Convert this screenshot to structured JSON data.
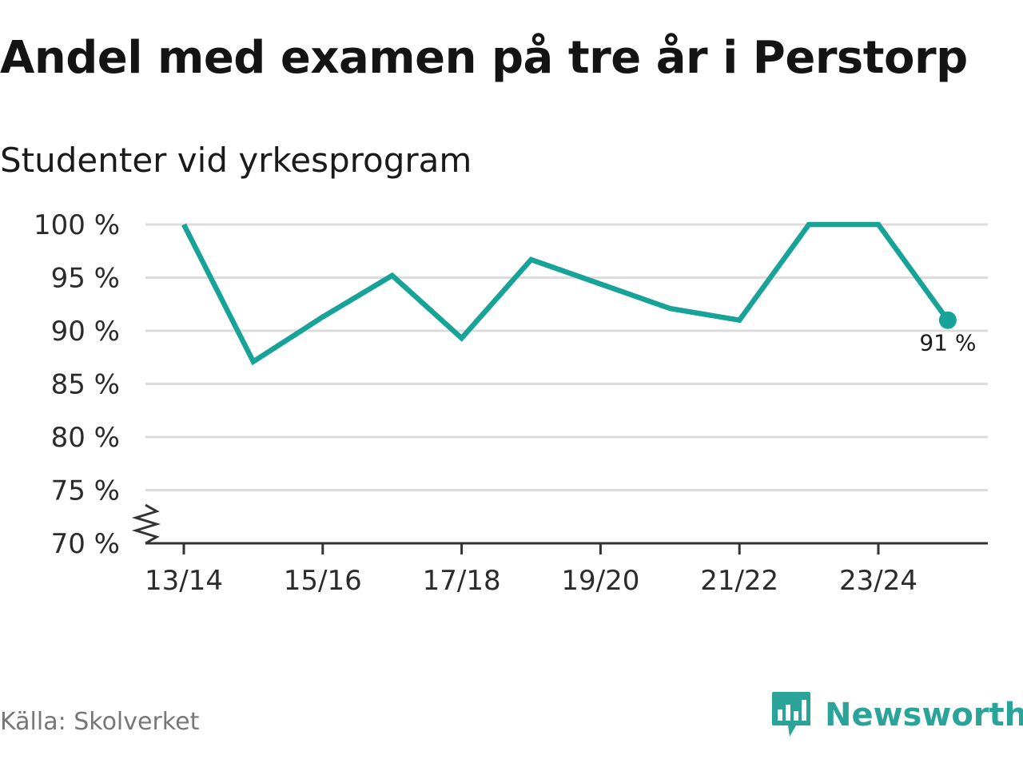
{
  "title": "Andel med examen på tre år i Perstorp",
  "subtitle": "Studenter vid yrkesprogram",
  "source": "Källa: Skolverket",
  "brand": "Newsworthy",
  "colors": {
    "line": "#17a398",
    "grid": "#dcdcdc",
    "axis": "#333333",
    "brand": "#2aa398"
  },
  "chart_data": {
    "type": "line",
    "title": "Andel med examen på tre år i Perstorp",
    "subtitle": "Studenter vid yrkesprogram",
    "xlabel": "",
    "ylabel": "",
    "x": [
      "13/14",
      "14/15",
      "15/16",
      "16/17",
      "17/18",
      "18/19",
      "19/20",
      "20/21",
      "21/22",
      "22/23",
      "23/24",
      "24/25"
    ],
    "x_tick_labels": [
      "13/14",
      "15/16",
      "17/18",
      "19/20",
      "21/22",
      "23/24"
    ],
    "series": [
      {
        "name": "Andel med examen",
        "values": [
          100,
          87.1,
          91.3,
          95.2,
          89.3,
          96.7,
          94.4,
          92.1,
          91.0,
          100,
          100,
          91.0
        ]
      }
    ],
    "ylim": [
      70,
      100
    ],
    "y_ticks": [
      70,
      75,
      80,
      85,
      90,
      95,
      100
    ],
    "y_tick_labels": [
      "70 %",
      "75 %",
      "80 %",
      "85 %",
      "90 %",
      "95 %",
      "100 %"
    ],
    "end_label": "91 %",
    "axis_break": true,
    "grid": true
  }
}
